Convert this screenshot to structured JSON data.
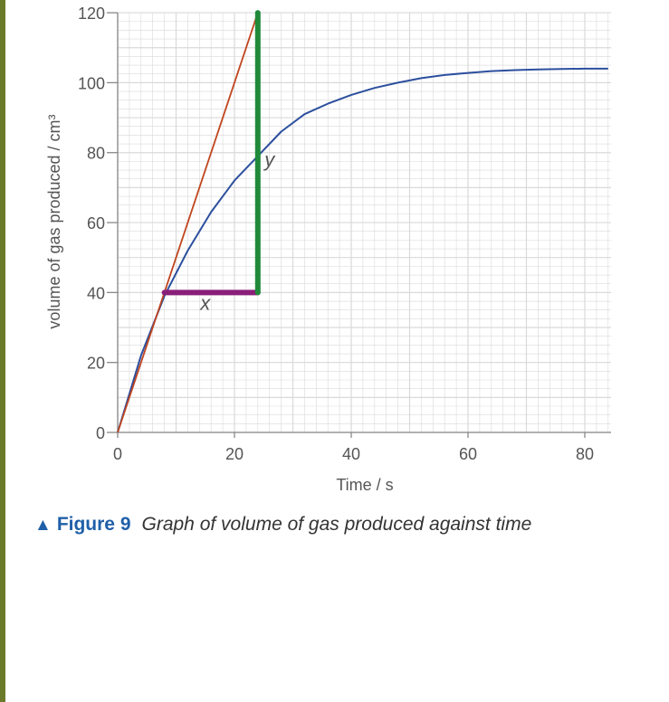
{
  "colors": {
    "sidebar": "#6b7a2a",
    "grid": "#d9d9d9",
    "axis": "#888888",
    "text": "#555555",
    "caption_blue": "#1f5fa8"
  },
  "caption": {
    "marker_icon": "triangle-up-icon",
    "triangle": "▲",
    "figure": "Figure 9",
    "text": "Graph of volume of gas produced against time"
  },
  "chart_data": {
    "type": "line",
    "title": "",
    "xlabel": "Time / s",
    "ylabel": "volume of gas produced / cm³",
    "xlim": [
      0,
      84
    ],
    "ylim": [
      0,
      120
    ],
    "grid": true,
    "x_ticks": [
      0,
      20,
      40,
      60,
      80
    ],
    "y_ticks": [
      0,
      20,
      40,
      60,
      80,
      100,
      120
    ],
    "x_tick_labels": [
      "0",
      "20",
      "40",
      "60",
      "80"
    ],
    "y_tick_labels": [
      "0",
      "20",
      "40",
      "60",
      "80",
      "100",
      "120"
    ],
    "series": [
      {
        "color": "#2c4f9e",
        "x": [
          0,
          4,
          8,
          12,
          16,
          20,
          24,
          28,
          32,
          36,
          40,
          44,
          48,
          52,
          56,
          60,
          64,
          68,
          72,
          76,
          80,
          84
        ],
        "y": [
          0,
          22,
          39,
          52,
          63,
          72,
          79,
          86,
          91,
          94,
          96.5,
          98.5,
          100,
          101.3,
          102.2,
          102.8,
          103.3,
          103.6,
          103.8,
          103.9,
          104,
          104
        ]
      },
      {
        "color": "#c0451f",
        "x": [
          0,
          24
        ],
        "y": [
          0,
          120
        ]
      }
    ],
    "annotations": [
      {
        "label": "x",
        "color": "#8a1f7a",
        "x": [
          8,
          24
        ],
        "y": [
          40,
          40
        ],
        "label_at": [
          15,
          35
        ]
      },
      {
        "label": "y",
        "color": "#1f8a3a",
        "x": [
          24,
          24
        ],
        "y": [
          40,
          120
        ],
        "label_at": [
          26,
          76
        ]
      }
    ]
  }
}
